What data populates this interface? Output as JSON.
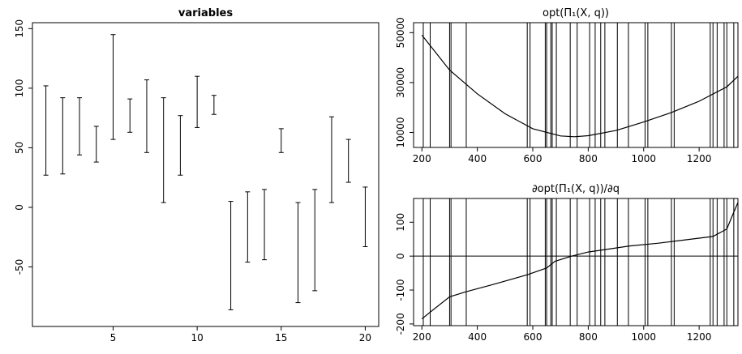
{
  "chart_data": [
    {
      "type": "interval",
      "title": "variables",
      "xlabel": "",
      "ylabel": "",
      "xlim": [
        0.2,
        20.8
      ],
      "ylim": [
        -100,
        155
      ],
      "xticks": [
        5,
        10,
        15,
        20
      ],
      "yticks": [
        -50,
        0,
        50,
        100,
        150
      ],
      "x": [
        1,
        2,
        3,
        4,
        5,
        6,
        7,
        8,
        9,
        10,
        11,
        12,
        13,
        14,
        15,
        16,
        17,
        18,
        19,
        20
      ],
      "lower": [
        27,
        28,
        44,
        38,
        57,
        63,
        46,
        4,
        27,
        67,
        78,
        -86,
        -46,
        -44,
        46,
        -80,
        -70,
        4,
        21,
        -33
      ],
      "upper": [
        102,
        92,
        92,
        68,
        145,
        91,
        107,
        92,
        77,
        110,
        94,
        5,
        13,
        15,
        66,
        4,
        15,
        76,
        57,
        17
      ]
    },
    {
      "type": "line",
      "title": "opt(Π₁(X, q))",
      "xlabel": "",
      "ylabel": "",
      "xlim": [
        170,
        1340
      ],
      "ylim": [
        4000,
        54000
      ],
      "xticks": [
        200,
        400,
        600,
        800,
        1000,
        1200
      ],
      "yticks": [
        10000,
        30000,
        50000
      ],
      "x": [
        200,
        300,
        400,
        500,
        600,
        700,
        750,
        800,
        900,
        1000,
        1100,
        1200,
        1300,
        1340
      ],
      "y": [
        49000,
        35000,
        25500,
        17500,
        11500,
        8600,
        8300,
        8700,
        10800,
        14200,
        18000,
        22500,
        28300,
        32500
      ],
      "vlines": [
        205,
        230,
        300,
        305,
        360,
        580,
        590,
        645,
        650,
        665,
        670,
        685,
        735,
        760,
        805,
        825,
        845,
        860,
        905,
        945,
        1005,
        1015,
        1100,
        1110,
        1240,
        1250,
        1265,
        1290,
        1300,
        1325
      ]
    },
    {
      "type": "line",
      "title": "∂opt(Π₁(X, q))/∂q",
      "xlabel": "",
      "ylabel": "",
      "xlim": [
        170,
        1340
      ],
      "ylim": [
        -205,
        170
      ],
      "xticks": [
        200,
        400,
        600,
        800,
        1000,
        1200
      ],
      "yticks": [
        -200,
        -100,
        0,
        100
      ],
      "hline": 0,
      "x": [
        200,
        230,
        300,
        360,
        450,
        580,
        650,
        680,
        740,
        800,
        850,
        950,
        1050,
        1150,
        1250,
        1300,
        1320,
        1340
      ],
      "y": [
        -185,
        -165,
        -120,
        -105,
        -85,
        -55,
        -35,
        -15,
        0,
        12,
        18,
        30,
        38,
        48,
        58,
        80,
        120,
        158
      ],
      "vlines": [
        205,
        230,
        300,
        305,
        360,
        580,
        590,
        645,
        650,
        665,
        670,
        685,
        735,
        760,
        805,
        825,
        845,
        860,
        905,
        945,
        1005,
        1015,
        1100,
        1110,
        1240,
        1250,
        1265,
        1290,
        1300,
        1325
      ]
    }
  ]
}
